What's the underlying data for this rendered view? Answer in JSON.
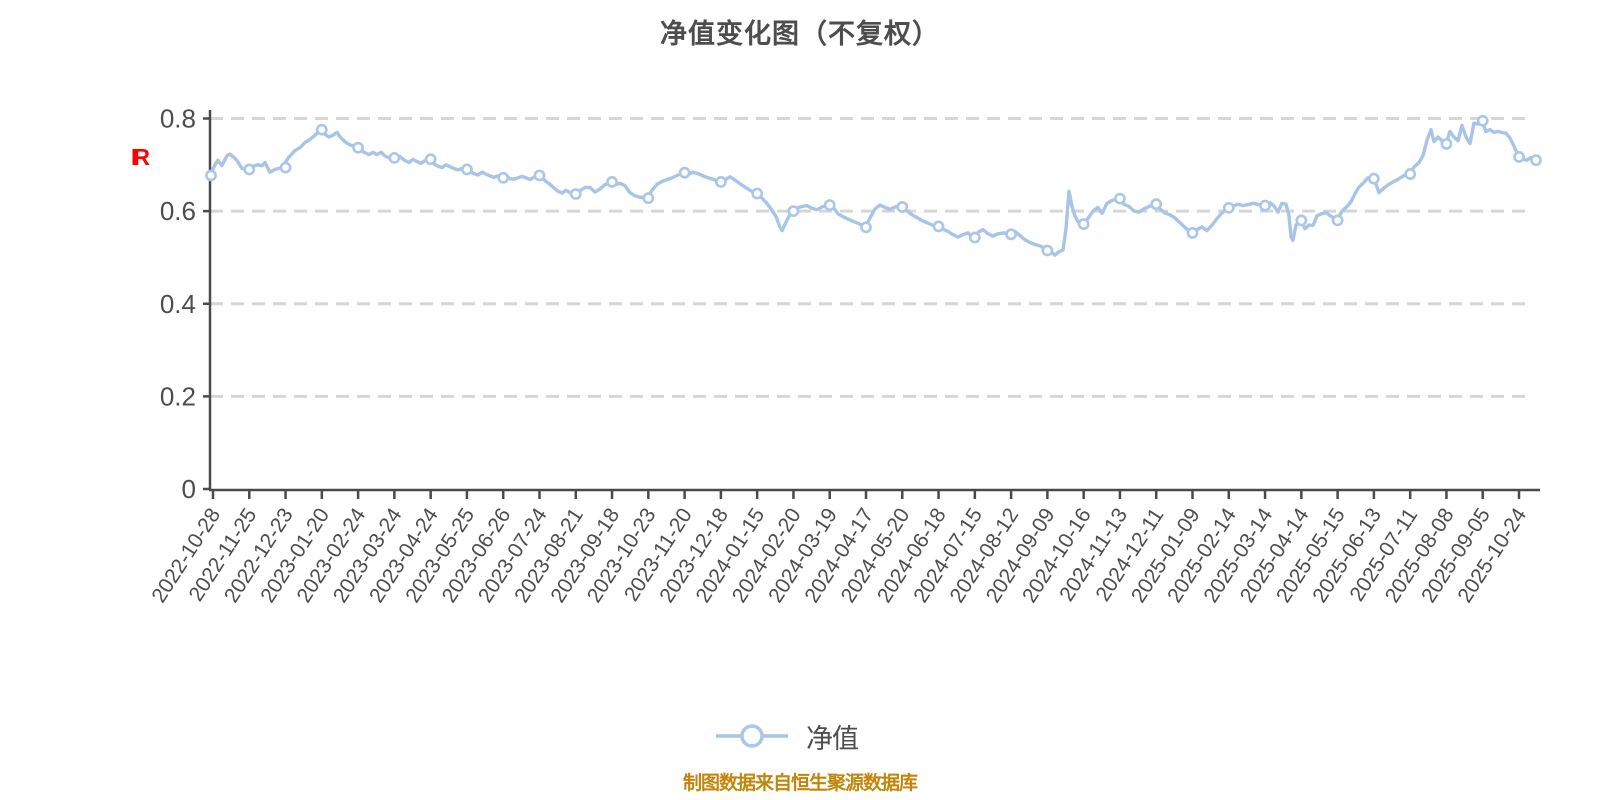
{
  "title": "净值变化图（不复权）",
  "y_axis_unit_label": "IR",
  "legend": {
    "series_label": "净值"
  },
  "caption": "制图数据来自恒生聚源数据库",
  "colors": {
    "title": "#4d4d4d",
    "axis": "#4a4a4a",
    "tick_label": "#4d4d4d",
    "gridline": "#d6d6d6",
    "line": "#a8c4e6",
    "marker_fill": "#ffffff",
    "marker_stroke": "#aac6e8",
    "unit_label": "#ff0000",
    "legend_text": "#4d4d4d",
    "caption": "#c1860b"
  },
  "chart_data": {
    "type": "line",
    "title": "净值变化图（不复权）",
    "series_name": "净值",
    "ylabel": "",
    "xlabel": "",
    "ylim": [
      0,
      0.8
    ],
    "y_ticks": [
      0,
      0.2,
      0.4,
      0.6,
      0.8
    ],
    "y_tick_labels": [
      "0",
      "0.2",
      "0.4",
      "0.6",
      "0.8"
    ],
    "grid": "horizontal-dashed",
    "legend_position": "bottom",
    "x_tick_labels": [
      "2022-10-28",
      "2022-11-25",
      "2022-12-23",
      "2023-01-20",
      "2023-02-24",
      "2023-03-24",
      "2023-04-24",
      "2023-05-25",
      "2023-06-26",
      "2023-07-24",
      "2023-08-21",
      "2023-09-18",
      "2023-10-23",
      "2023-11-20",
      "2023-12-18",
      "2024-01-15",
      "2024-02-20",
      "2024-03-19",
      "2024-04-17",
      "2024-05-20",
      "2024-06-18",
      "2024-07-15",
      "2024-08-12",
      "2024-09-09",
      "2024-10-16",
      "2024-11-13",
      "2024-12-11",
      "2025-01-09",
      "2025-02-14",
      "2025-03-14",
      "2025-04-14",
      "2025-05-15",
      "2025-06-13",
      "2025-07-11",
      "2025-08-08",
      "2025-09-05",
      "2025-10-24"
    ],
    "marker_values": [
      0.677,
      0.69,
      0.694,
      0.776,
      0.737,
      0.715,
      0.712,
      0.69,
      0.672,
      0.677,
      0.637,
      0.663,
      0.628,
      0.683,
      0.663,
      0.638,
      0.6,
      0.613,
      0.565,
      0.609,
      0.567,
      0.543,
      0.55,
      0.515,
      0.572,
      0.627,
      0.615,
      0.553,
      0.607,
      0.612,
      0.58,
      0.58,
      0.67,
      0.68,
      0.745,
      0.795,
      0.717
    ],
    "final_value": 0.71,
    "path": [
      [
        0,
        0.677
      ],
      [
        0.0038,
        0.7
      ],
      [
        0.006,
        0.71
      ],
      [
        0.009,
        0.698
      ],
      [
        0.0128,
        0.72
      ],
      [
        0.0151,
        0.723
      ],
      [
        0.0189,
        0.714
      ],
      [
        0.0211,
        0.706
      ],
      [
        0.0241,
        0.692
      ],
      [
        0.0287,
        0.69
      ],
      [
        0.0324,
        0.697
      ],
      [
        0.0362,
        0.7
      ],
      [
        0.0392,
        0.698
      ],
      [
        0.0415,
        0.705
      ],
      [
        0.0452,
        0.684
      ],
      [
        0.049,
        0.69
      ],
      [
        0.0543,
        0.694
      ],
      [
        0.0588,
        0.714
      ],
      [
        0.0641,
        0.731
      ],
      [
        0.0679,
        0.737
      ],
      [
        0.0716,
        0.748
      ],
      [
        0.0754,
        0.755
      ],
      [
        0.0784,
        0.762
      ],
      [
        0.0814,
        0.77
      ],
      [
        0.0837,
        0.776
      ],
      [
        0.0867,
        0.766
      ],
      [
        0.0897,
        0.76
      ],
      [
        0.0928,
        0.764
      ],
      [
        0.0958,
        0.77
      ],
      [
        0.0988,
        0.758
      ],
      [
        0.1018,
        0.75
      ],
      [
        0.1056,
        0.743
      ],
      [
        0.1086,
        0.74
      ],
      [
        0.1109,
        0.737
      ],
      [
        0.1139,
        0.731
      ],
      [
        0.1169,
        0.726
      ],
      [
        0.1199,
        0.722
      ],
      [
        0.1229,
        0.727
      ],
      [
        0.1259,
        0.722
      ],
      [
        0.129,
        0.727
      ],
      [
        0.132,
        0.719
      ],
      [
        0.135,
        0.715
      ],
      [
        0.138,
        0.715
      ],
      [
        0.141,
        0.721
      ],
      [
        0.144,
        0.716
      ],
      [
        0.1471,
        0.709
      ],
      [
        0.1501,
        0.705
      ],
      [
        0.1531,
        0.712
      ],
      [
        0.1561,
        0.707
      ],
      [
        0.1591,
        0.703
      ],
      [
        0.1621,
        0.709
      ],
      [
        0.1659,
        0.712
      ],
      [
        0.1689,
        0.702
      ],
      [
        0.1719,
        0.697
      ],
      [
        0.175,
        0.694
      ],
      [
        0.178,
        0.7
      ],
      [
        0.181,
        0.696
      ],
      [
        0.184,
        0.692
      ],
      [
        0.187,
        0.689
      ],
      [
        0.19,
        0.692
      ],
      [
        0.1931,
        0.69
      ],
      [
        0.1961,
        0.686
      ],
      [
        0.1991,
        0.681
      ],
      [
        0.2021,
        0.678
      ],
      [
        0.2051,
        0.684
      ],
      [
        0.2081,
        0.68
      ],
      [
        0.2112,
        0.676
      ],
      [
        0.2142,
        0.673
      ],
      [
        0.2172,
        0.676
      ],
      [
        0.2202,
        0.672
      ],
      [
        0.2232,
        0.677
      ],
      [
        0.2262,
        0.67
      ],
      [
        0.2293,
        0.669
      ],
      [
        0.2323,
        0.672
      ],
      [
        0.2353,
        0.675
      ],
      [
        0.2383,
        0.672
      ],
      [
        0.2413,
        0.668
      ],
      [
        0.2443,
        0.673
      ],
      [
        0.2474,
        0.677
      ],
      [
        0.2504,
        0.672
      ],
      [
        0.2534,
        0.664
      ],
      [
        0.2564,
        0.658
      ],
      [
        0.2594,
        0.65
      ],
      [
        0.2624,
        0.643
      ],
      [
        0.2655,
        0.639
      ],
      [
        0.2685,
        0.645
      ],
      [
        0.2715,
        0.64
      ],
      [
        0.2753,
        0.637
      ],
      [
        0.279,
        0.644
      ],
      [
        0.2828,
        0.651
      ],
      [
        0.2866,
        0.651
      ],
      [
        0.2904,
        0.641
      ],
      [
        0.2941,
        0.648
      ],
      [
        0.2979,
        0.657
      ],
      [
        0.3024,
        0.663
      ],
      [
        0.3062,
        0.658
      ],
      [
        0.3092,
        0.66
      ],
      [
        0.313,
        0.655
      ],
      [
        0.3167,
        0.64
      ],
      [
        0.3205,
        0.633
      ],
      [
        0.3243,
        0.63
      ],
      [
        0.3296,
        0.628
      ],
      [
        0.3333,
        0.645
      ],
      [
        0.3371,
        0.658
      ],
      [
        0.3409,
        0.664
      ],
      [
        0.3446,
        0.668
      ],
      [
        0.3484,
        0.672
      ],
      [
        0.3522,
        0.677
      ],
      [
        0.3567,
        0.683
      ],
      [
        0.3605,
        0.679
      ],
      [
        0.3643,
        0.684
      ],
      [
        0.368,
        0.681
      ],
      [
        0.3718,
        0.676
      ],
      [
        0.3756,
        0.672
      ],
      [
        0.3801,
        0.668
      ],
      [
        0.3846,
        0.663
      ],
      [
        0.3884,
        0.668
      ],
      [
        0.3922,
        0.674
      ],
      [
        0.3959,
        0.667
      ],
      [
        0.3997,
        0.659
      ],
      [
        0.4035,
        0.652
      ],
      [
        0.4072,
        0.645
      ],
      [
        0.4118,
        0.638
      ],
      [
        0.4155,
        0.63
      ],
      [
        0.4193,
        0.619
      ],
      [
        0.4231,
        0.605
      ],
      [
        0.4269,
        0.588
      ],
      [
        0.4299,
        0.565
      ],
      [
        0.4314,
        0.558
      ],
      [
        0.4337,
        0.572
      ],
      [
        0.4359,
        0.585
      ],
      [
        0.4389,
        0.6
      ],
      [
        0.4427,
        0.607
      ],
      [
        0.4465,
        0.61
      ],
      [
        0.4502,
        0.612
      ],
      [
        0.454,
        0.606
      ],
      [
        0.4578,
        0.603
      ],
      [
        0.4615,
        0.609
      ],
      [
        0.4661,
        0.613
      ],
      [
        0.4698,
        0.609
      ],
      [
        0.4736,
        0.594
      ],
      [
        0.4774,
        0.588
      ],
      [
        0.4811,
        0.583
      ],
      [
        0.4849,
        0.578
      ],
      [
        0.4887,
        0.574
      ],
      [
        0.494,
        0.565
      ],
      [
        0.4977,
        0.585
      ],
      [
        0.5015,
        0.605
      ],
      [
        0.5053,
        0.613
      ],
      [
        0.509,
        0.608
      ],
      [
        0.5128,
        0.604
      ],
      [
        0.5173,
        0.61
      ],
      [
        0.5219,
        0.609
      ],
      [
        0.5256,
        0.601
      ],
      [
        0.5294,
        0.592
      ],
      [
        0.5332,
        0.586
      ],
      [
        0.5369,
        0.58
      ],
      [
        0.5407,
        0.575
      ],
      [
        0.5445,
        0.57
      ],
      [
        0.549,
        0.567
      ],
      [
        0.5528,
        0.561
      ],
      [
        0.5566,
        0.556
      ],
      [
        0.5603,
        0.549
      ],
      [
        0.5641,
        0.544
      ],
      [
        0.5679,
        0.549
      ],
      [
        0.5716,
        0.553
      ],
      [
        0.5754,
        0.543
      ],
      [
        0.5792,
        0.554
      ],
      [
        0.5829,
        0.56
      ],
      [
        0.5867,
        0.551
      ],
      [
        0.5905,
        0.546
      ],
      [
        0.5943,
        0.551
      ],
      [
        0.5988,
        0.553
      ],
      [
        0.6033,
        0.55
      ],
      [
        0.6071,
        0.556
      ],
      [
        0.6109,
        0.547
      ],
      [
        0.6146,
        0.538
      ],
      [
        0.6184,
        0.532
      ],
      [
        0.6222,
        0.528
      ],
      [
        0.6267,
        0.524
      ],
      [
        0.6312,
        0.515
      ],
      [
        0.6342,
        0.513
      ],
      [
        0.6372,
        0.505
      ],
      [
        0.6403,
        0.512
      ],
      [
        0.6433,
        0.516
      ],
      [
        0.6455,
        0.56
      ],
      [
        0.6478,
        0.643
      ],
      [
        0.6501,
        0.61
      ],
      [
        0.6523,
        0.59
      ],
      [
        0.6546,
        0.577
      ],
      [
        0.6584,
        0.572
      ],
      [
        0.6621,
        0.584
      ],
      [
        0.6659,
        0.6
      ],
      [
        0.6697,
        0.608
      ],
      [
        0.6727,
        0.595
      ],
      [
        0.6765,
        0.617
      ],
      [
        0.6802,
        0.623
      ],
      [
        0.6855,
        0.627
      ],
      [
        0.6893,
        0.615
      ],
      [
        0.6931,
        0.61
      ],
      [
        0.6968,
        0.6
      ],
      [
        0.7006,
        0.598
      ],
      [
        0.7044,
        0.605
      ],
      [
        0.7081,
        0.61
      ],
      [
        0.7127,
        0.615
      ],
      [
        0.7164,
        0.605
      ],
      [
        0.7202,
        0.596
      ],
      [
        0.724,
        0.592
      ],
      [
        0.7278,
        0.585
      ],
      [
        0.7315,
        0.575
      ],
      [
        0.736,
        0.563
      ],
      [
        0.7406,
        0.553
      ],
      [
        0.7443,
        0.56
      ],
      [
        0.7481,
        0.566
      ],
      [
        0.7519,
        0.558
      ],
      [
        0.7557,
        0.57
      ],
      [
        0.7594,
        0.584
      ],
      [
        0.7632,
        0.596
      ],
      [
        0.7677,
        0.607
      ],
      [
        0.7715,
        0.611
      ],
      [
        0.7753,
        0.615
      ],
      [
        0.779,
        0.612
      ],
      [
        0.7828,
        0.614
      ],
      [
        0.7866,
        0.617
      ],
      [
        0.7911,
        0.614
      ],
      [
        0.7956,
        0.612
      ],
      [
        0.7994,
        0.618
      ],
      [
        0.8024,
        0.611
      ],
      [
        0.8054,
        0.598
      ],
      [
        0.8084,
        0.617
      ],
      [
        0.8115,
        0.615
      ],
      [
        0.8137,
        0.59
      ],
      [
        0.8152,
        0.545
      ],
      [
        0.8167,
        0.537
      ],
      [
        0.819,
        0.57
      ],
      [
        0.8228,
        0.58
      ],
      [
        0.8258,
        0.562
      ],
      [
        0.8288,
        0.57
      ],
      [
        0.8318,
        0.569
      ],
      [
        0.8348,
        0.59
      ],
      [
        0.8379,
        0.594
      ],
      [
        0.8416,
        0.597
      ],
      [
        0.8454,
        0.589
      ],
      [
        0.8499,
        0.58
      ],
      [
        0.8537,
        0.6
      ],
      [
        0.8575,
        0.61
      ],
      [
        0.8605,
        0.62
      ],
      [
        0.8635,
        0.638
      ],
      [
        0.8665,
        0.652
      ],
      [
        0.8695,
        0.66
      ],
      [
        0.8733,
        0.672
      ],
      [
        0.8778,
        0.67
      ],
      [
        0.8816,
        0.64
      ],
      [
        0.8854,
        0.65
      ],
      [
        0.8891,
        0.658
      ],
      [
        0.8929,
        0.664
      ],
      [
        0.8967,
        0.67
      ],
      [
        0.9005,
        0.677
      ],
      [
        0.9042,
        0.68
      ],
      [
        0.908,
        0.695
      ],
      [
        0.9118,
        0.705
      ],
      [
        0.9148,
        0.72
      ],
      [
        0.9178,
        0.753
      ],
      [
        0.9208,
        0.776
      ],
      [
        0.9231,
        0.75
      ],
      [
        0.9261,
        0.76
      ],
      [
        0.9291,
        0.752
      ],
      [
        0.9321,
        0.745
      ],
      [
        0.9351,
        0.772
      ],
      [
        0.9381,
        0.76
      ],
      [
        0.9412,
        0.752
      ],
      [
        0.9442,
        0.785
      ],
      [
        0.9472,
        0.76
      ],
      [
        0.9502,
        0.746
      ],
      [
        0.9532,
        0.79
      ],
      [
        0.9562,
        0.788
      ],
      [
        0.9593,
        0.795
      ],
      [
        0.9623,
        0.772
      ],
      [
        0.9653,
        0.776
      ],
      [
        0.9683,
        0.77
      ],
      [
        0.9713,
        0.772
      ],
      [
        0.9744,
        0.77
      ],
      [
        0.9774,
        0.768
      ],
      [
        0.9804,
        0.758
      ],
      [
        0.9834,
        0.74
      ],
      [
        0.9872,
        0.717
      ],
      [
        0.9902,
        0.712
      ],
      [
        0.9932,
        0.71
      ],
      [
        0.9962,
        0.716
      ],
      [
        1,
        0.71
      ]
    ]
  }
}
